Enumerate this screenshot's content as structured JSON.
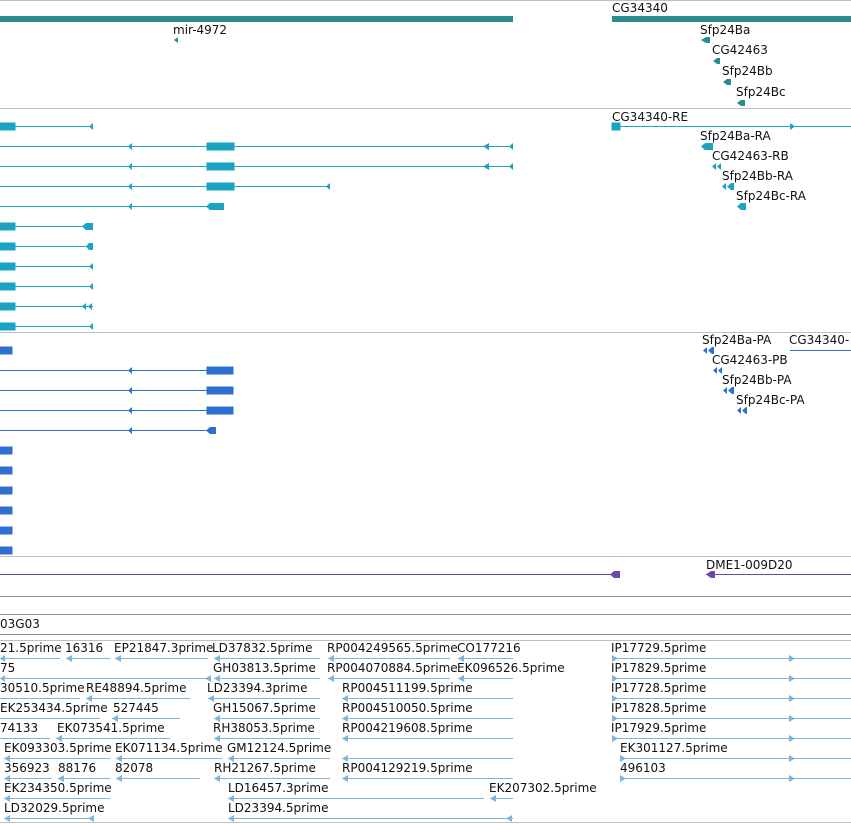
{
  "colors": {
    "gene": "#2b8c8c",
    "transcript": "#1aa3c2",
    "protein": "#2e6fd1",
    "insertion": "#6a4aa8",
    "est": "#7fb5dd",
    "separator": "#c0c0c0"
  },
  "tracks": {
    "genes": {
      "features": [
        {
          "label": "CG34340",
          "x1": 612,
          "x2": 851,
          "strand": "block"
        },
        {
          "label": "",
          "x1": 0,
          "x2": 513,
          "strand": "block"
        },
        {
          "label": "mir-4972",
          "x1": 174,
          "x2": 178,
          "strand": "-"
        },
        {
          "label": "Sfp24Ba",
          "x1": 701,
          "x2": 710,
          "strand": "-"
        },
        {
          "label": "CG42463",
          "x1": 713,
          "x2": 720,
          "strand": "-"
        },
        {
          "label": "Sfp24Bb",
          "x1": 723,
          "x2": 731,
          "strand": "-"
        },
        {
          "label": "Sfp24Bc",
          "x1": 737,
          "x2": 745,
          "strand": "-"
        }
      ]
    },
    "transcripts": {
      "labels": [
        "CG34340-RE",
        "Sfp24Ba-RA",
        "CG42463-RB",
        "Sfp24Bb-RA",
        "Sfp24Bc-RA"
      ]
    },
    "proteins": {
      "labels": [
        "Sfp24Ba-PA",
        "CG34340-",
        "CG42463-PB",
        "Sfp24Bb-PA",
        "Sfp24Bc-PA"
      ]
    },
    "insertions": {
      "labels": [
        "DME1-009D20"
      ]
    },
    "clones": {
      "labels": [
        "03G03"
      ]
    },
    "ests": {
      "labels": [
        "21.5prime",
        "16316",
        "EP21847.3prime",
        "LD37832.5prime",
        "RP004249565.5prime",
        "CO177216",
        "IP17729.5prime",
        "75",
        "GH03813.5prime",
        "RP004070884.5prime",
        "EK096526.5prime",
        "IP17829.5prime",
        "30510.5prime",
        "RE48894.5prime",
        "LD23394.3prime",
        "RP004511199.5prime",
        "IP17728.5prime",
        "EK253434.5prime",
        "527445",
        "GH15067.5prime",
        "RP004510050.5prime",
        "IP17828.5prime",
        "74133",
        "EK073541.5prime",
        "RH38053.5prime",
        "RP004219608.5prime",
        "IP17929.5prime",
        "EK093303.5prime",
        "EK071134.5prime",
        "GM12124.5prime",
        "EK301127.5prime",
        "356923",
        "88176",
        "82078",
        "RH21267.5prime",
        "RP004129219.5prime",
        "496103",
        "EK234350.5prime",
        "LD16457.3prime",
        "EK207302.5prime",
        "LD32029.5prime",
        "LD23394.5prime"
      ]
    }
  }
}
